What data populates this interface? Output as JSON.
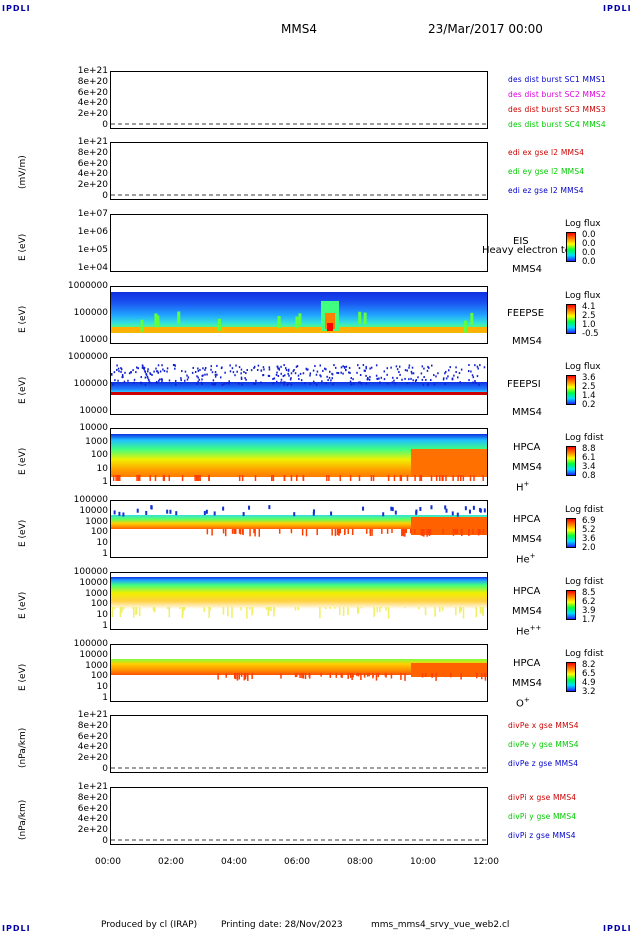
{
  "corner_label": "IPDLI",
  "header": {
    "spacecraft": "MMS4",
    "datetime": "23/Mar/2017 00:00"
  },
  "x_ticks": [
    "00:00",
    "02:00",
    "04:00",
    "06:00",
    "08:00",
    "10:00",
    "12:00"
  ],
  "footer": {
    "produced": "Produced by cl (IRAP)",
    "printing": "Printing date: 28/Nov/2023",
    "file": "mms_mms4_srvy_vue_web2.cl"
  },
  "colors": {
    "blue": "#0000cc",
    "magenta": "#dd00dd",
    "red": "#cc0000",
    "green": "#00cc00"
  },
  "panels": [
    {
      "id": "p1",
      "ylabel": "",
      "ticks": [
        "1e+21",
        "8e+20",
        "6e+20",
        "4e+20",
        "2e+20",
        "0"
      ],
      "legend": [
        {
          "text": "des dist burst SC1 MMS1",
          "color": "#0000cc"
        },
        {
          "text": "des dist burst SC2 MMS2",
          "color": "#dd00dd"
        },
        {
          "text": "des dist burst SC3 MMS3",
          "color": "#cc0000"
        },
        {
          "text": "des dist burst SC4 MMS4",
          "color": "#00cc00"
        }
      ]
    },
    {
      "id": "p2",
      "ylabel": "(mV/m)",
      "ticks": [
        "1e+21",
        "8e+20",
        "6e+20",
        "4e+20",
        "2e+20",
        "0"
      ],
      "legend": [
        {
          "text": "edi ex gse l2 MMS4",
          "color": "#cc0000"
        },
        {
          "text": "edi ey gse l2 MMS4",
          "color": "#00cc00"
        },
        {
          "text": "edi ez gse l2 MMS4",
          "color": "#0000cc"
        }
      ]
    },
    {
      "id": "p3",
      "ylabel": "E (eV)",
      "ticks": [
        "1e+07",
        "1e+06",
        "1e+05",
        "1e+04"
      ],
      "inst": "EIS",
      "overlay": "Heavy electron to",
      "sc": "MMS4",
      "cbtitle": "Log flux",
      "cbticks": [
        "0.0",
        "0.0",
        "0.0",
        "0.0"
      ]
    },
    {
      "id": "p4",
      "ylabel": "E (eV)",
      "ticks": [
        "1000000",
        "100000",
        "10000"
      ],
      "inst": "FEEPSE",
      "sc": "MMS4",
      "cbtitle": "Log flux",
      "cbticks": [
        "4.1",
        "2.5",
        "1.0",
        "-0.5"
      ]
    },
    {
      "id": "p5",
      "ylabel": "E (eV)",
      "ticks": [
        "1000000",
        "100000",
        "10000"
      ],
      "inst": "FEEPSI",
      "sc": "MMS4",
      "cbtitle": "Log flux",
      "cbticks": [
        "3.6",
        "2.5",
        "1.4",
        "0.2"
      ]
    },
    {
      "id": "p6",
      "ylabel": "E (eV)",
      "ticks": [
        "10000",
        "1000",
        "100",
        "10",
        "1"
      ],
      "inst": "HPCA",
      "sc": "MMS4",
      "species": "H",
      "sup": "+",
      "cbtitle": "Log fdist",
      "cbticks": [
        "8.8",
        "6.1",
        "3.4",
        "0.8"
      ]
    },
    {
      "id": "p7",
      "ylabel": "E (eV)",
      "ticks": [
        "100000",
        "10000",
        "1000",
        "100",
        "10",
        "1"
      ],
      "inst": "HPCA",
      "sc": "MMS4",
      "species": "He",
      "sup": "+",
      "cbtitle": "Log fdist",
      "cbticks": [
        "6.9",
        "5.2",
        "3.6",
        "2.0"
      ]
    },
    {
      "id": "p8",
      "ylabel": "E (eV)",
      "ticks": [
        "100000",
        "10000",
        "1000",
        "100",
        "10",
        "1"
      ],
      "inst": "HPCA",
      "sc": "MMS4",
      "species": "He",
      "sup": "++",
      "cbtitle": "Log fdist",
      "cbticks": [
        "8.5",
        "6.2",
        "3.9",
        "1.7"
      ]
    },
    {
      "id": "p9",
      "ylabel": "E (eV)",
      "ticks": [
        "100000",
        "10000",
        "1000",
        "100",
        "10",
        "1"
      ],
      "inst": "HPCA",
      "sc": "MMS4",
      "species": "O",
      "sup": "+",
      "cbtitle": "Log fdist",
      "cbticks": [
        "8.2",
        "6.5",
        "4.9",
        "3.2"
      ]
    },
    {
      "id": "p10",
      "ylabel": "(nPa/km)",
      "ticks": [
        "1e+21",
        "8e+20",
        "6e+20",
        "4e+20",
        "2e+20",
        "0"
      ],
      "legend": [
        {
          "text": "divPe x gse MMS4",
          "color": "#cc0000"
        },
        {
          "text": "divPe y gse MMS4",
          "color": "#00cc00"
        },
        {
          "text": "divPe z gse MMS4",
          "color": "#0000cc"
        }
      ]
    },
    {
      "id": "p11",
      "ylabel": "(nPa/km)",
      "ticks": [
        "1e+21",
        "8e+20",
        "6e+20",
        "4e+20",
        "2e+20",
        "0"
      ],
      "legend": [
        {
          "text": "divPi x gse MMS4",
          "color": "#cc0000"
        },
        {
          "text": "divPi y gse MMS4",
          "color": "#00cc00"
        },
        {
          "text": "divPi z gse MMS4",
          "color": "#0000cc"
        }
      ]
    }
  ],
  "chart_data": {
    "type": "heatmap",
    "x": [
      "00:00",
      "02:00",
      "04:00",
      "06:00",
      "08:00",
      "10:00",
      "12:00"
    ],
    "xlim": [
      "00:00",
      "12:00"
    ],
    "series": [
      {
        "name": "FEEPSE",
        "energy_band_eV": [
          30000,
          1000000
        ]
      },
      {
        "name": "FEEPSI",
        "energy_band_eV": [
          50000,
          1000000
        ]
      },
      {
        "name": "HPCA H+",
        "energy_band_eV": [
          1,
          30000
        ]
      },
      {
        "name": "HPCA He+",
        "energy_band_eV": [
          100,
          20000
        ]
      },
      {
        "name": "HPCA He++",
        "energy_band_eV": [
          10,
          30000
        ]
      },
      {
        "name": "HPCA O+",
        "energy_band_eV": [
          200,
          5000
        ]
      }
    ]
  }
}
